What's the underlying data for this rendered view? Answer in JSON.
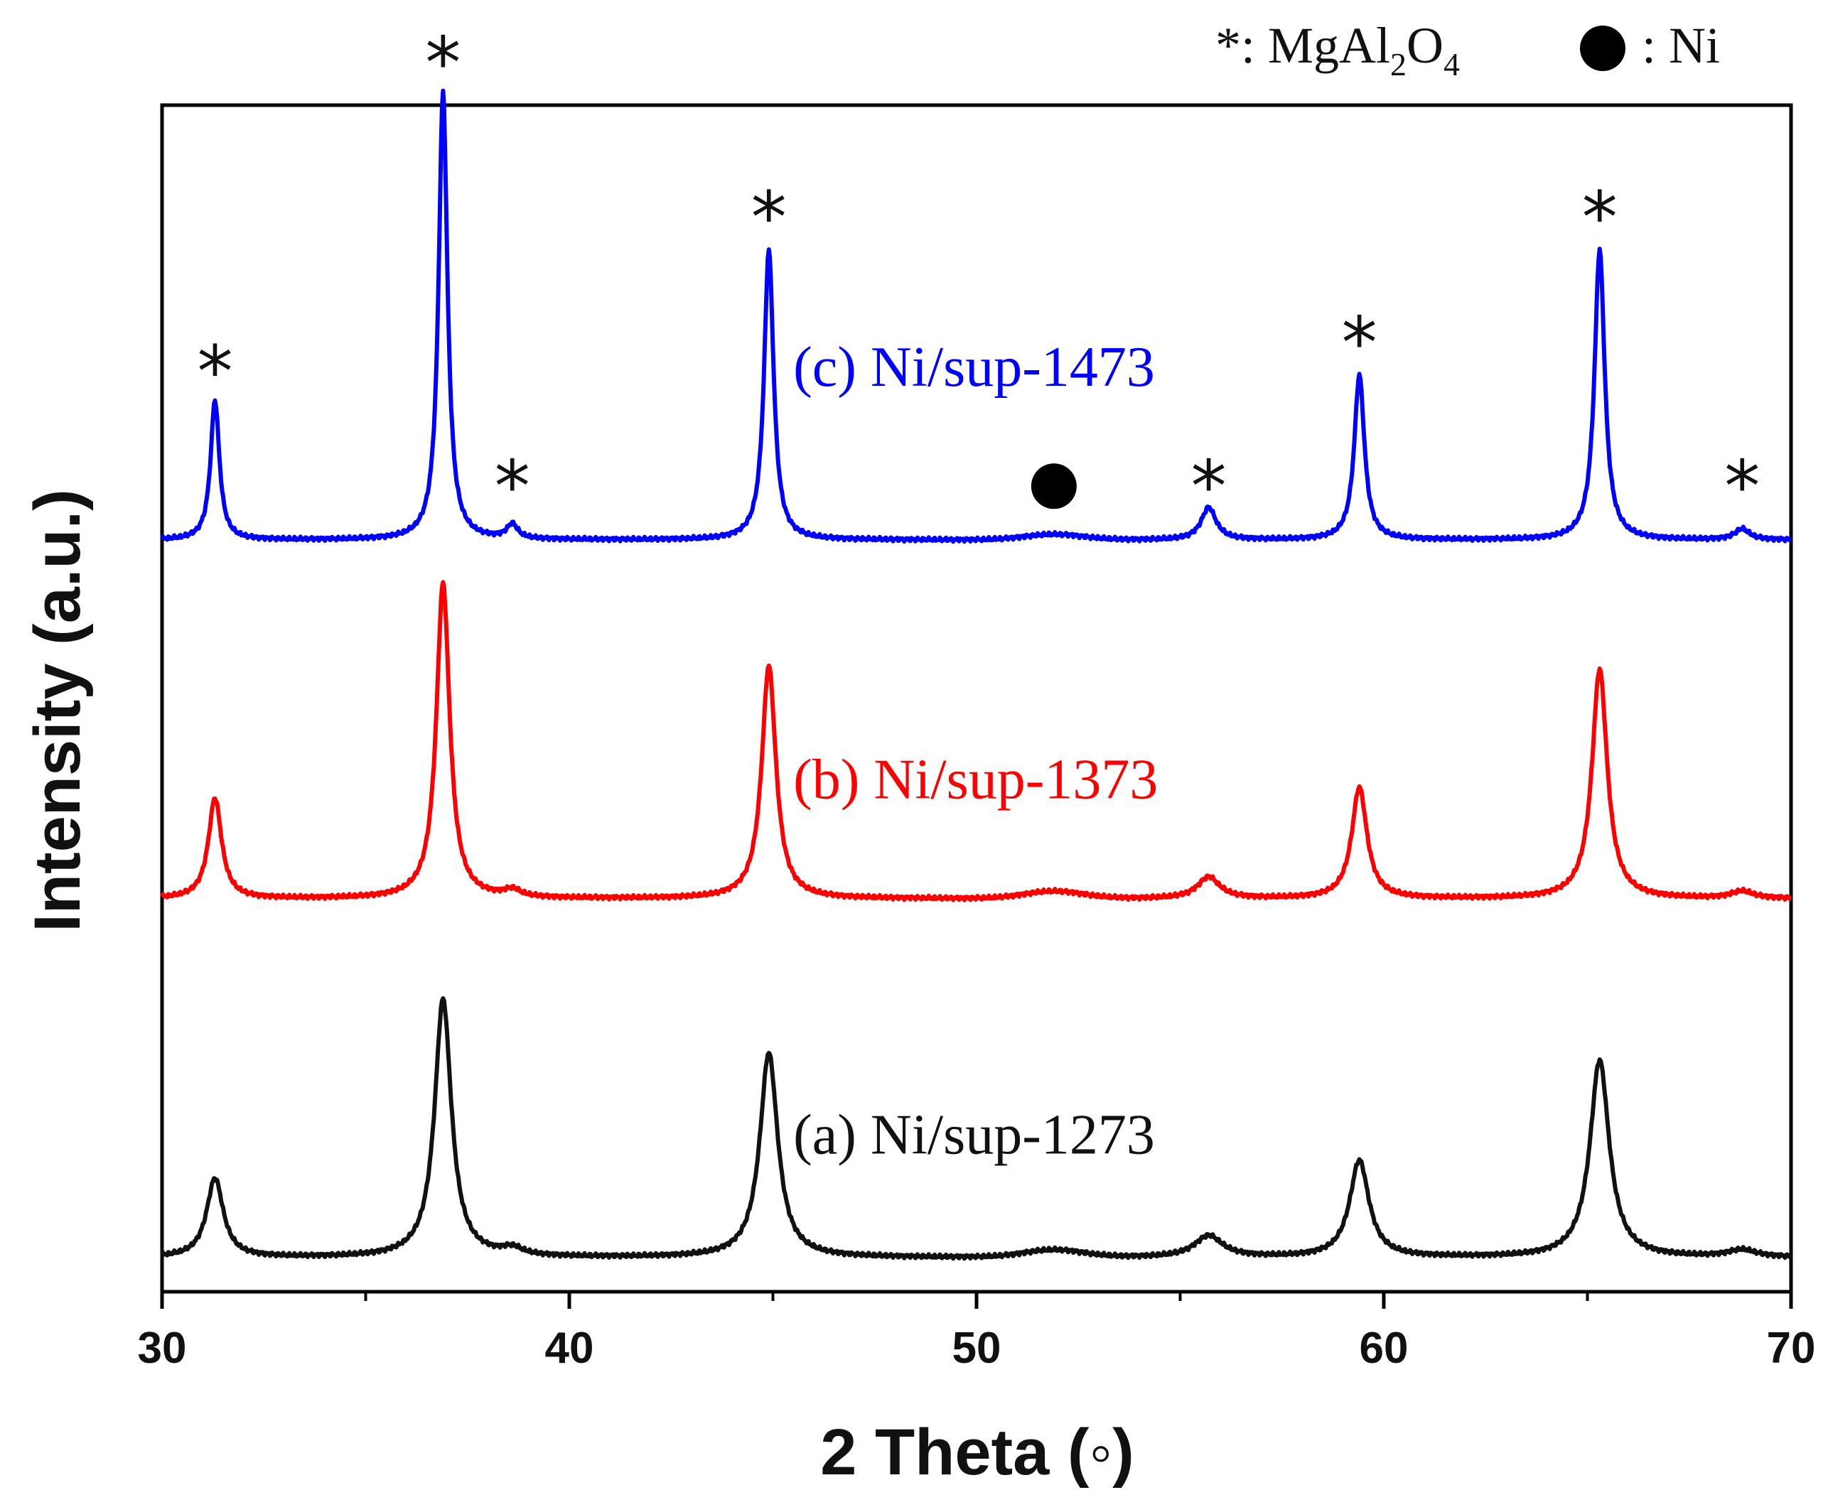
{
  "chart_data": {
    "type": "line",
    "title": "",
    "xlabel": "2 Theta (◦)",
    "ylabel": "Intensity (a.u.)",
    "xlim": [
      30,
      70
    ],
    "x_ticks": [
      30,
      40,
      50,
      60,
      70
    ],
    "y_ticks": [],
    "grid": false,
    "legend": {
      "placement": "top-right",
      "entries": [
        {
          "symbol": "*",
          "prefix": ": Mg",
          "a": "Al",
          "sub1": "2",
          "b": "O",
          "sub2": "4",
          "text": "*: MgAl2O4"
        },
        {
          "symbol": "●",
          "text": ": Ni"
        }
      ]
    },
    "peaks": {
      "spinel_positions": [
        31.3,
        36.9,
        38.6,
        44.9,
        55.7,
        59.4,
        65.3,
        68.8
      ],
      "ni_positions": [
        51.9
      ],
      "widths": [
        0.13,
        0.13,
        0.16,
        0.14,
        0.22,
        0.15,
        0.15,
        0.22
      ],
      "ni_width": 1.0
    },
    "series": [
      {
        "name": "(a) Ni/sup-1273",
        "color": "#111111",
        "baseline": 0.0,
        "heights": [
          0.22,
          0.72,
          0.02,
          0.57,
          0.06,
          0.27,
          0.55,
          0.02
        ],
        "ni_height": 0.02,
        "width_scale": 1.9
      },
      {
        "name": "(b) Ni/sup-1373",
        "color": "#ff0000",
        "baseline": 1.0,
        "heights": [
          0.28,
          0.88,
          0.02,
          0.65,
          0.06,
          0.31,
          0.64,
          0.02
        ],
        "ni_height": 0.02,
        "width_scale": 1.5
      },
      {
        "name": "(c) Ni/sup-1473",
        "color": "#0000ff",
        "baseline": 2.0,
        "heights": [
          0.39,
          1.25,
          0.04,
          0.81,
          0.09,
          0.46,
          0.81,
          0.03
        ],
        "ni_height": 0.015,
        "width_scale": 1.0
      }
    ],
    "annotations": [
      {
        "symbol": "*",
        "x": 31.3,
        "y": 2.52
      },
      {
        "symbol": "*",
        "x": 36.9,
        "y": 3.38
      },
      {
        "symbol": "*",
        "x": 38.6,
        "y": 2.2
      },
      {
        "symbol": "*",
        "x": 44.9,
        "y": 2.95
      },
      {
        "symbol": "●",
        "x": 51.9,
        "y": 2.15
      },
      {
        "symbol": "*",
        "x": 55.7,
        "y": 2.2
      },
      {
        "symbol": "*",
        "x": 59.4,
        "y": 2.6
      },
      {
        "symbol": "*",
        "x": 65.3,
        "y": 2.95
      },
      {
        "symbol": "*",
        "x": 68.8,
        "y": 2.2
      }
    ]
  }
}
